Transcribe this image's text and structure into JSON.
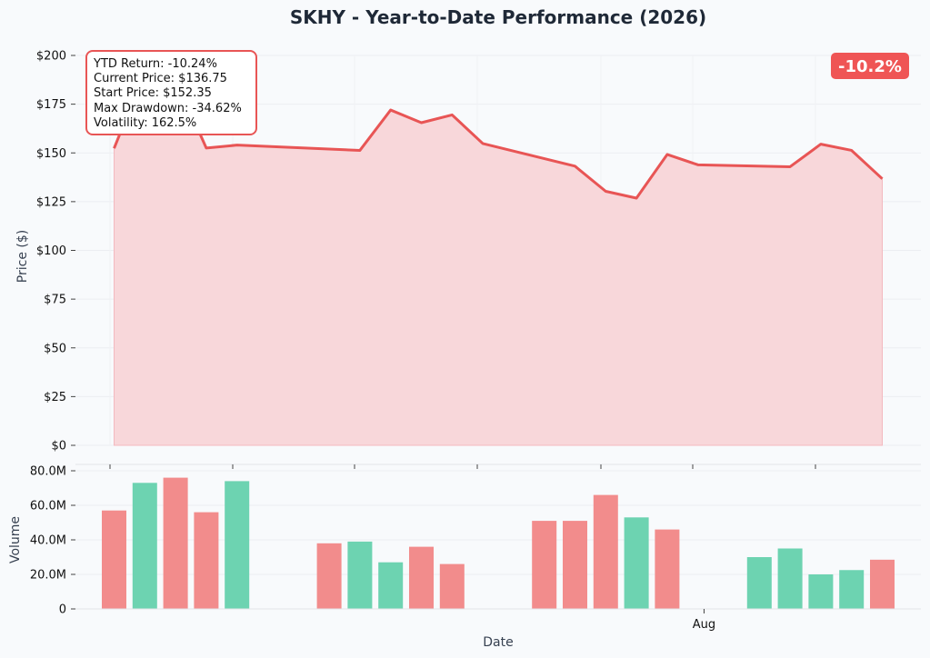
{
  "title": "SKHY - Year-to-Date Performance (2026)",
  "badge": {
    "text": "-10.2%",
    "color": "#ef5555"
  },
  "stats": {
    "ytd_return": "YTD Return: -10.24%",
    "current_price": "Current Price: $136.75",
    "start_price": "Start Price: $152.35",
    "max_drawdown": "Max Drawdown: -34.62%",
    "volatility": "Volatility: 162.5%"
  },
  "colors": {
    "line": "#e85555",
    "fill": "#f8d7da",
    "up": "#6dd3b1",
    "down": "#f28c8c",
    "text": "#1f2937"
  },
  "chart_data": [
    {
      "type": "area",
      "ylabel": "Price ($)",
      "ylim": [
        0,
        205
      ],
      "yticks": [
        0,
        25,
        50,
        75,
        100,
        125,
        150,
        175,
        200
      ],
      "ytick_labels": [
        "$0",
        "$25",
        "$50",
        "$75",
        "$100",
        "$125",
        "$150",
        "$175",
        "$200"
      ],
      "grid": true,
      "series": [
        {
          "x": [
            0,
            1,
            2,
            3,
            4,
            8,
            9,
            10,
            11,
            12,
            15,
            16,
            17,
            18,
            19,
            22,
            23,
            24,
            25
          ],
          "values": [
            152.35,
            191.5,
            188,
            152.5,
            154,
            151.3,
            172,
            165.5,
            169.5,
            154.8,
            143.2,
            130.3,
            126.8,
            149.2,
            143.9,
            142.9,
            154.5,
            151.3,
            136.75
          ]
        }
      ]
    },
    {
      "type": "bar",
      "xlabel": "Date",
      "ylabel": "Volume",
      "ylim": [
        0,
        80
      ],
      "yticks": [
        0,
        20,
        40,
        60,
        80
      ],
      "ytick_labels": [
        "0",
        "20.0M",
        "40.0M",
        "60.0M",
        "80.0M"
      ],
      "xtick_labels": [
        {
          "x": 19.2,
          "label": "Aug"
        }
      ],
      "grid": true,
      "x": [
        0,
        1,
        2,
        3,
        4,
        7,
        8,
        9,
        10,
        11,
        14,
        15,
        16,
        17,
        18,
        21,
        22,
        23,
        24,
        25
      ],
      "values": [
        57,
        73,
        76,
        56,
        74,
        38,
        39,
        27,
        36,
        26,
        51,
        51,
        66,
        53,
        46,
        30,
        35,
        20,
        22.5,
        28.5
      ],
      "direction": [
        "down",
        "up",
        "down",
        "down",
        "up",
        "down",
        "up",
        "up",
        "down",
        "down",
        "down",
        "down",
        "down",
        "up",
        "down",
        "up",
        "up",
        "up",
        "up",
        "down"
      ]
    }
  ]
}
